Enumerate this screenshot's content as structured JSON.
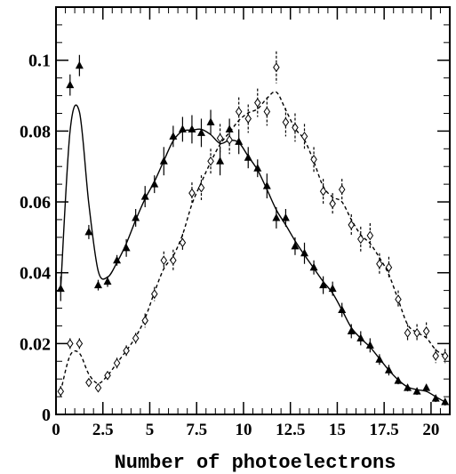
{
  "chart_data": {
    "type": "scatter",
    "title": "",
    "xlabel": "Number of photoelectrons",
    "ylabel": "",
    "xlim": [
      0,
      21
    ],
    "ylim": [
      0,
      0.115
    ],
    "x_ticks": [
      0,
      2.5,
      5,
      7.5,
      10,
      12.5,
      15,
      17.5,
      20
    ],
    "x_tick_labels": [
      "0",
      "2.5",
      "5",
      "7.5",
      "10",
      "12.5",
      "15",
      "17.5",
      "20"
    ],
    "y_ticks": [
      0,
      0.02,
      0.04,
      0.06,
      0.08,
      0.1
    ],
    "y_tick_labels": [
      "0",
      "0.02",
      "0.04",
      "0.06",
      "0.08",
      "0.1"
    ],
    "grid": false,
    "series": [
      {
        "marker": "filled-triangle",
        "fit_line": "solid",
        "color": "#000000",
        "points": [
          [
            0.25,
            0.0355,
            0.0035
          ],
          [
            0.75,
            0.093,
            0.003
          ],
          [
            1.25,
            0.0985,
            0.003
          ],
          [
            1.75,
            0.0515,
            0.002
          ],
          [
            2.25,
            0.0365,
            0.0015
          ],
          [
            2.75,
            0.0375,
            0.0015
          ],
          [
            3.25,
            0.0435,
            0.0015
          ],
          [
            3.75,
            0.047,
            0.0025
          ],
          [
            4.25,
            0.0555,
            0.0025
          ],
          [
            4.75,
            0.0615,
            0.003
          ],
          [
            5.25,
            0.065,
            0.0025
          ],
          [
            5.75,
            0.0715,
            0.004
          ],
          [
            6.25,
            0.0785,
            0.003
          ],
          [
            6.75,
            0.0805,
            0.0035
          ],
          [
            7.25,
            0.0805,
            0.004
          ],
          [
            7.75,
            0.0795,
            0.004
          ],
          [
            8.25,
            0.0825,
            0.0035
          ],
          [
            8.75,
            0.0715,
            0.004
          ],
          [
            9.25,
            0.0805,
            0.003
          ],
          [
            9.75,
            0.077,
            0.0035
          ],
          [
            10.25,
            0.0725,
            0.003
          ],
          [
            10.75,
            0.0695,
            0.0025
          ],
          [
            11.25,
            0.0645,
            0.0035
          ],
          [
            11.75,
            0.0555,
            0.003
          ],
          [
            12.25,
            0.0555,
            0.0025
          ],
          [
            12.75,
            0.0475,
            0.0025
          ],
          [
            13.25,
            0.0455,
            0.003
          ],
          [
            13.75,
            0.0415,
            0.002
          ],
          [
            14.25,
            0.0365,
            0.0025
          ],
          [
            14.75,
            0.0355,
            0.002
          ],
          [
            15.25,
            0.0295,
            0.002
          ],
          [
            15.75,
            0.0235,
            0.002
          ],
          [
            16.25,
            0.0215,
            0.002
          ],
          [
            16.75,
            0.0195,
            0.002
          ],
          [
            17.25,
            0.0155,
            0.0015
          ],
          [
            17.75,
            0.0125,
            0.0015
          ],
          [
            18.25,
            0.0095,
            0.001
          ],
          [
            18.75,
            0.0075,
            0.001
          ],
          [
            19.25,
            0.0065,
            0.001
          ],
          [
            19.75,
            0.0075,
            0.001
          ],
          [
            20.25,
            0.0045,
            0.001
          ],
          [
            20.75,
            0.0035,
            0.001
          ]
        ]
      },
      {
        "marker": "open-diamond",
        "fit_line": "dashed",
        "color": "#000000",
        "points": [
          [
            0.25,
            0.0065,
            0.0015
          ],
          [
            0.75,
            0.02,
            0.0015
          ],
          [
            1.25,
            0.02,
            0.0015
          ],
          [
            1.75,
            0.009,
            0.001
          ],
          [
            2.25,
            0.0075,
            0.001
          ],
          [
            2.75,
            0.011,
            0.001
          ],
          [
            3.25,
            0.0145,
            0.0015
          ],
          [
            3.75,
            0.018,
            0.0015
          ],
          [
            4.25,
            0.0215,
            0.0015
          ],
          [
            4.75,
            0.0265,
            0.002
          ],
          [
            5.25,
            0.034,
            0.002
          ],
          [
            5.75,
            0.0435,
            0.0025
          ],
          [
            6.25,
            0.0435,
            0.003
          ],
          [
            6.75,
            0.0485,
            0.0025
          ],
          [
            7.25,
            0.0625,
            0.003
          ],
          [
            7.75,
            0.064,
            0.0035
          ],
          [
            8.25,
            0.0715,
            0.0035
          ],
          [
            8.75,
            0.078,
            0.004
          ],
          [
            9.25,
            0.0775,
            0.004
          ],
          [
            9.75,
            0.0855,
            0.004
          ],
          [
            10.25,
            0.0835,
            0.004
          ],
          [
            10.75,
            0.088,
            0.004
          ],
          [
            11.25,
            0.0855,
            0.004
          ],
          [
            11.75,
            0.098,
            0.0045
          ],
          [
            12.25,
            0.0825,
            0.004
          ],
          [
            12.75,
            0.081,
            0.004
          ],
          [
            13.25,
            0.0785,
            0.0035
          ],
          [
            13.75,
            0.072,
            0.0035
          ],
          [
            14.25,
            0.063,
            0.0035
          ],
          [
            14.75,
            0.0595,
            0.003
          ],
          [
            15.25,
            0.0635,
            0.003
          ],
          [
            15.75,
            0.0535,
            0.003
          ],
          [
            16.25,
            0.0495,
            0.0035
          ],
          [
            16.75,
            0.0505,
            0.0035
          ],
          [
            17.25,
            0.0425,
            0.003
          ],
          [
            17.75,
            0.0415,
            0.003
          ],
          [
            18.25,
            0.0325,
            0.0025
          ],
          [
            18.75,
            0.023,
            0.0025
          ],
          [
            19.25,
            0.023,
            0.0025
          ],
          [
            19.75,
            0.0235,
            0.0025
          ],
          [
            20.25,
            0.0165,
            0.002
          ],
          [
            20.75,
            0.0165,
            0.002
          ]
        ]
      }
    ]
  }
}
